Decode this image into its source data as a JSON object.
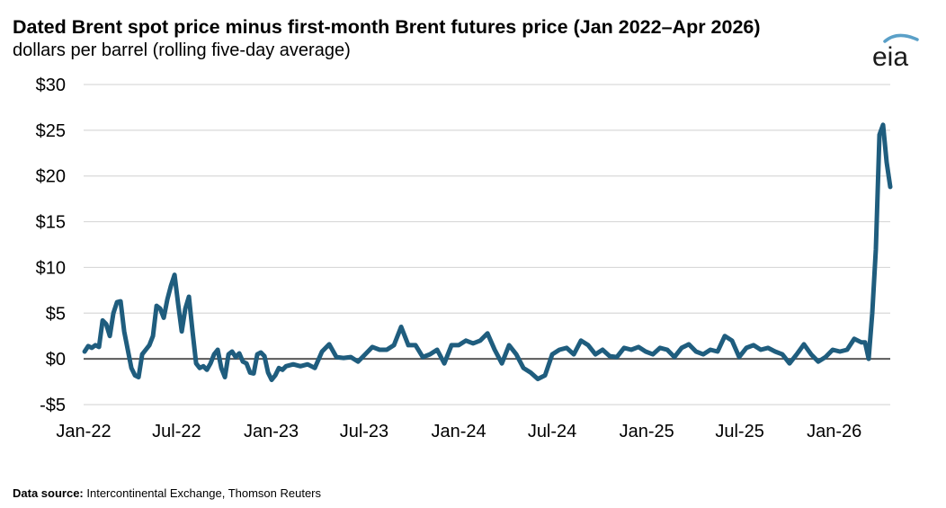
{
  "title": "Dated Brent spot price minus first-month Brent futures price (Jan 2022–Apr 2026)",
  "subtitle": "dollars per barrel (rolling five-day average)",
  "logo_text": "eia",
  "source": {
    "label": "Data source:",
    "text": "Intercontinental Exchange, Thomson Reuters"
  },
  "colors": {
    "line": "#1f5d7e",
    "grid": "#d9d9d9",
    "zero": "#595959",
    "logo_arc": "#5aa0c8"
  },
  "chart_data": {
    "type": "line",
    "title": "Dated Brent spot price minus first-month Brent futures price (Jan 2022–Apr 2026)",
    "ylabel": "dollars per barrel (rolling five-day average)",
    "xlabel": "",
    "ylim": [
      -5,
      30
    ],
    "yticks": [
      -5,
      0,
      5,
      10,
      15,
      20,
      25,
      30
    ],
    "ytick_labels": [
      "-$5",
      "$0",
      "$5",
      "$10",
      "$15",
      "$20",
      "$25",
      "$30"
    ],
    "xlim": [
      "2022-01-01",
      "2026-04-20"
    ],
    "xticks": [
      "2022-01-01",
      "2022-07-01",
      "2023-01-01",
      "2023-07-01",
      "2024-01-01",
      "2024-07-01",
      "2025-01-01",
      "2025-07-01",
      "2026-01-01"
    ],
    "xtick_labels": [
      "Jan-22",
      "Jul-22",
      "Jan-23",
      "Jul-23",
      "Jan-24",
      "Jul-24",
      "Jan-25",
      "Jul-25",
      "Jan-26"
    ],
    "grid": true,
    "legend": "none",
    "series": [
      {
        "x": [
          "2022-01-03",
          "2022-01-10",
          "2022-01-17",
          "2022-01-24",
          "2022-01-31",
          "2022-02-07",
          "2022-02-14",
          "2022-02-21",
          "2022-02-28",
          "2022-03-07",
          "2022-03-14",
          "2022-03-21",
          "2022-03-28",
          "2022-04-04",
          "2022-04-11",
          "2022-04-18",
          "2022-04-25",
          "2022-05-02",
          "2022-05-09",
          "2022-05-16",
          "2022-05-23",
          "2022-05-30",
          "2022-06-06",
          "2022-06-13",
          "2022-06-20",
          "2022-06-27",
          "2022-07-04",
          "2022-07-11",
          "2022-07-18",
          "2022-07-25",
          "2022-08-01",
          "2022-08-08",
          "2022-08-15",
          "2022-08-22",
          "2022-08-29",
          "2022-09-05",
          "2022-09-12",
          "2022-09-19",
          "2022-09-26",
          "2022-10-03",
          "2022-10-10",
          "2022-10-17",
          "2022-10-24",
          "2022-10-31",
          "2022-11-07",
          "2022-11-14",
          "2022-11-21",
          "2022-11-28",
          "2022-12-05",
          "2022-12-12",
          "2022-12-19",
          "2022-12-26",
          "2023-01-02",
          "2023-01-09",
          "2023-01-16",
          "2023-01-23",
          "2023-01-30",
          "2023-02-13",
          "2023-02-27",
          "2023-03-13",
          "2023-03-27",
          "2023-04-10",
          "2023-04-24",
          "2023-05-08",
          "2023-05-22",
          "2023-06-05",
          "2023-06-19",
          "2023-07-03",
          "2023-07-17",
          "2023-07-31",
          "2023-08-14",
          "2023-08-28",
          "2023-09-11",
          "2023-09-25",
          "2023-10-09",
          "2023-10-23",
          "2023-11-06",
          "2023-11-20",
          "2023-12-04",
          "2023-12-18",
          "2024-01-01",
          "2024-01-15",
          "2024-01-29",
          "2024-02-12",
          "2024-02-26",
          "2024-03-11",
          "2024-03-25",
          "2024-04-08",
          "2024-04-22",
          "2024-05-06",
          "2024-05-20",
          "2024-06-03",
          "2024-06-17",
          "2024-07-01",
          "2024-07-15",
          "2024-07-29",
          "2024-08-12",
          "2024-08-26",
          "2024-09-09",
          "2024-09-23",
          "2024-10-07",
          "2024-10-21",
          "2024-11-04",
          "2024-11-18",
          "2024-12-02",
          "2024-12-16",
          "2024-12-30",
          "2025-01-13",
          "2025-01-27",
          "2025-02-10",
          "2025-02-24",
          "2025-03-10",
          "2025-03-24",
          "2025-04-07",
          "2025-04-21",
          "2025-05-05",
          "2025-05-19",
          "2025-06-02",
          "2025-06-16",
          "2025-06-30",
          "2025-07-14",
          "2025-07-28",
          "2025-08-11",
          "2025-08-25",
          "2025-09-08",
          "2025-09-22",
          "2025-10-06",
          "2025-10-20",
          "2025-11-03",
          "2025-11-17",
          "2025-12-01",
          "2025-12-15",
          "2025-12-29",
          "2026-01-12",
          "2026-01-26",
          "2026-02-09",
          "2026-02-23",
          "2026-03-02",
          "2026-03-09",
          "2026-03-16",
          "2026-03-23",
          "2026-03-30",
          "2026-04-06",
          "2026-04-13",
          "2026-04-20"
        ],
        "y": [
          0.8,
          1.4,
          1.2,
          1.5,
          1.3,
          4.2,
          3.8,
          2.5,
          5.0,
          6.2,
          6.3,
          3.0,
          1.0,
          -1.0,
          -1.8,
          -2.0,
          0.5,
          1.0,
          1.5,
          2.5,
          5.8,
          5.5,
          4.5,
          6.5,
          8.0,
          9.2,
          6.0,
          3.0,
          5.5,
          6.8,
          3.0,
          -0.5,
          -1.0,
          -0.8,
          -1.2,
          -0.5,
          0.5,
          1.0,
          -1.0,
          -2.0,
          0.5,
          0.8,
          0.2,
          0.6,
          -0.3,
          -0.5,
          -1.5,
          -1.6,
          0.5,
          0.7,
          0.3,
          -1.5,
          -2.3,
          -1.8,
          -1.0,
          -1.2,
          -0.8,
          -0.6,
          -0.8,
          -0.6,
          -1.0,
          0.8,
          1.6,
          0.2,
          0.1,
          0.2,
          -0.3,
          0.5,
          1.3,
          1.0,
          1.0,
          1.5,
          3.5,
          1.5,
          1.5,
          0.2,
          0.5,
          1.0,
          -0.5,
          1.5,
          1.5,
          2.0,
          1.7,
          2.0,
          2.8,
          1.0,
          -0.5,
          1.5,
          0.5,
          -1.0,
          -1.5,
          -2.2,
          -1.8,
          0.5,
          1.0,
          1.2,
          0.5,
          2.0,
          1.5,
          0.5,
          1.0,
          0.3,
          0.2,
          1.2,
          1.0,
          1.3,
          0.8,
          0.5,
          1.2,
          1.0,
          0.2,
          1.2,
          1.6,
          0.8,
          0.5,
          1.0,
          0.8,
          2.5,
          2.0,
          0.2,
          1.2,
          1.5,
          1.0,
          1.2,
          0.8,
          0.5,
          -0.5,
          0.5,
          1.6,
          0.5,
          -0.3,
          0.2,
          1.0,
          0.8,
          1.0,
          2.2,
          1.8,
          1.8,
          0.0,
          5.0,
          12.0,
          24.5,
          25.6,
          21.5,
          18.8
        ]
      }
    ]
  }
}
